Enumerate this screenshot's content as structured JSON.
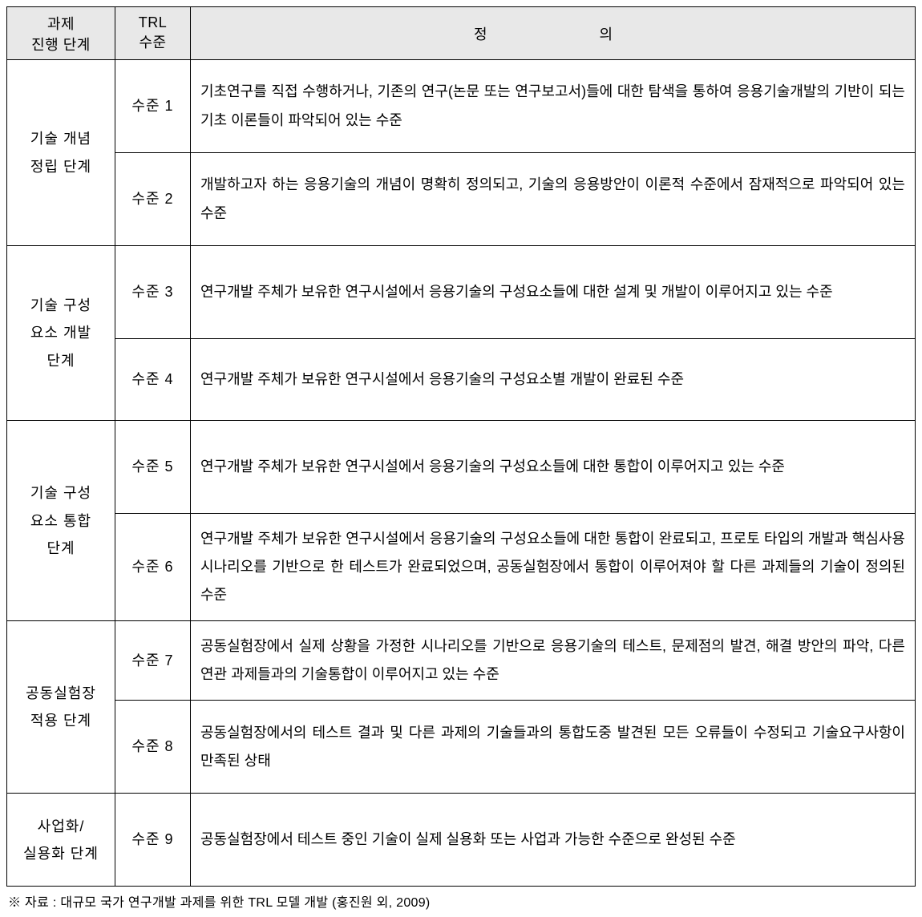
{
  "table": {
    "headers": {
      "stage": "과제\n진행 단계",
      "level": "TRL\n수준",
      "definition": "정    의"
    },
    "stages": [
      {
        "name": "기술 개념\n정립 단계",
        "rows": [
          {
            "level": "수준 1",
            "def": "기초연구를 직접 수행하거나, 기존의 연구(논문 또는 연구보고서)들에 대한 탐색을 통하여 응용기술개발의 기반이 되는 기초 이론들이 파악되어 있는 수준"
          },
          {
            "level": "수준 2",
            "def": "개발하고자 하는 응용기술의 개념이 명확히 정의되고, 기술의 응용방안이 이론적 수준에서 잠재적으로 파악되어 있는 수준"
          }
        ]
      },
      {
        "name": "기술 구성\n요소 개발\n단계",
        "rows": [
          {
            "level": "수준 3",
            "def": "연구개발 주체가 보유한 연구시설에서 응용기술의 구성요소들에 대한 설계 및 개발이 이루어지고 있는 수준"
          },
          {
            "level": "수준 4",
            "def": "연구개발 주체가 보유한 연구시설에서 응용기술의 구성요소별 개발이 완료된 수준"
          }
        ]
      },
      {
        "name": "기술 구성\n요소 통합\n단계",
        "rows": [
          {
            "level": "수준 5",
            "def": "연구개발 주체가 보유한 연구시설에서 응용기술의 구성요소들에 대한 통합이 이루어지고 있는 수준"
          },
          {
            "level": "수준 6",
            "def": "연구개발 주체가 보유한 연구시설에서 응용기술의 구성요소들에 대한 통합이 완료되고, 프로토 타입의 개발과 핵심사용 시나리오를 기반으로 한 테스트가 완료되었으며, 공동실험장에서 통합이 이루어져야 할 다른 과제들의 기술이 정의된 수준"
          }
        ]
      },
      {
        "name": "공동실험장\n적용 단계",
        "rows": [
          {
            "level": "수준 7",
            "def": "공동실험장에서 실제 상황을 가정한 시나리오를 기반으로 응용기술의 테스트, 문제점의 발견, 해결 방안의 파악, 다른 연관 과제들과의 기술통합이 이루어지고 있는 수준"
          },
          {
            "level": "수준 8",
            "def": "공동실험장에서의 테스트 결과 및 다른 과제의 기술들과의 통합도중 발견된 모든 오류들이 수정되고 기술요구사항이 만족된 상태"
          }
        ]
      },
      {
        "name": "사업화/\n실용화 단계",
        "rows": [
          {
            "level": "수준 9",
            "def": "공동실험장에서 테스트 중인 기술이 실제 실용화 또는 사업과 가능한 수준으로 완성된 수준"
          }
        ]
      }
    ],
    "footnote": "※ 자료 : 대규모 국가 연구개발 과제를 위한 TRL 모델 개발 (홍진원 외, 2009)"
  },
  "colors": {
    "header_bg": "#e8e8e8",
    "border": "#000000",
    "background": "#ffffff",
    "text": "#000000"
  },
  "typography": {
    "body_fontsize": 18,
    "footnote_fontsize": 16,
    "line_height": 1.95
  }
}
